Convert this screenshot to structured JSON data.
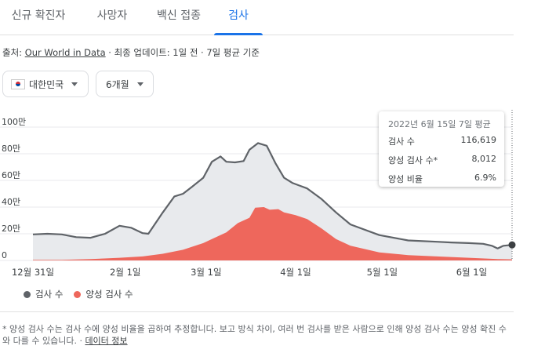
{
  "tabs": [
    {
      "label": "신규 확진자",
      "active": false
    },
    {
      "label": "사망자",
      "active": false
    },
    {
      "label": "백신 접종",
      "active": false
    },
    {
      "label": "검사",
      "active": true
    }
  ],
  "source": {
    "prefix": "출처: ",
    "link": "Our World in Data",
    "suffix": " · 최종 업데이트: 1일 전 · 7일 평균 기준"
  },
  "filters": {
    "country": "대한민국",
    "period": "6개월"
  },
  "tooltip": {
    "title": "2022년 6월 15일 7일 평균",
    "rows": [
      {
        "label": "검사 수",
        "value": "116,619"
      },
      {
        "label": "양성 검사 수*",
        "value": "8,012"
      },
      {
        "label": "양성 비율",
        "value": "6.9%"
      }
    ]
  },
  "legend": [
    {
      "label": "검사 수",
      "color": "#5f6368"
    },
    {
      "label": "양성 검사 수",
      "color": "#ee675c"
    }
  ],
  "footnote": {
    "text": "* 양성 검사 수는 검사 수에 양성 비율을 곱하여 추정합니다. 보고 방식 차이, 여러 번 검사를 받은 사람으로 인해 양성 검사 수는 양성 확진 수와 다를 수 있습니다. · ",
    "link": "데이터 정보"
  },
  "colors": {
    "accent": "#1a73e8",
    "tests_line": "#5f6368",
    "tests_fill": "#e8eaed",
    "positive_fill": "#ee675c"
  },
  "chart_data": {
    "type": "area",
    "x_tick_labels": [
      "12월 31일",
      "2월 1일",
      "3월 1일",
      "4월 1일",
      "5월 1일",
      "6월 1일"
    ],
    "y_tick_labels": [
      "0",
      "20만",
      "40만",
      "60만",
      "80만",
      "100만"
    ],
    "ylim": [
      0,
      1000000
    ],
    "grid": true,
    "series": [
      {
        "name": "검사 수",
        "points": [
          [
            "12-31",
            195000
          ],
          [
            "01-05",
            200000
          ],
          [
            "01-10",
            195000
          ],
          [
            "01-15",
            175000
          ],
          [
            "01-20",
            170000
          ],
          [
            "01-25",
            200000
          ],
          [
            "01-30",
            260000
          ],
          [
            "02-03",
            245000
          ],
          [
            "02-07",
            205000
          ],
          [
            "02-09",
            200000
          ],
          [
            "02-14",
            360000
          ],
          [
            "02-18",
            480000
          ],
          [
            "02-21",
            500000
          ],
          [
            "02-24",
            550000
          ],
          [
            "02-28",
            620000
          ],
          [
            "03-03",
            740000
          ],
          [
            "03-06",
            780000
          ],
          [
            "03-08",
            740000
          ],
          [
            "03-11",
            735000
          ],
          [
            "03-14",
            745000
          ],
          [
            "03-16",
            830000
          ],
          [
            "03-19",
            880000
          ],
          [
            "03-22",
            860000
          ],
          [
            "03-25",
            730000
          ],
          [
            "03-28",
            620000
          ],
          [
            "03-31",
            580000
          ],
          [
            "04-05",
            540000
          ],
          [
            "04-10",
            460000
          ],
          [
            "04-15",
            360000
          ],
          [
            "04-20",
            270000
          ],
          [
            "04-30",
            190000
          ],
          [
            "05-10",
            150000
          ],
          [
            "05-20",
            140000
          ],
          [
            "05-25",
            135000
          ],
          [
            "05-31",
            130000
          ],
          [
            "06-05",
            125000
          ],
          [
            "06-08",
            110000
          ],
          [
            "06-10",
            90000
          ],
          [
            "06-12",
            110000
          ],
          [
            "06-15",
            116619
          ]
        ]
      },
      {
        "name": "양성 검사 수",
        "points": [
          [
            "12-31",
            5000
          ],
          [
            "01-10",
            5000
          ],
          [
            "01-20",
            10000
          ],
          [
            "01-30",
            20000
          ],
          [
            "02-07",
            30000
          ],
          [
            "02-14",
            50000
          ],
          [
            "02-21",
            80000
          ],
          [
            "02-28",
            130000
          ],
          [
            "03-03",
            160000
          ],
          [
            "03-08",
            210000
          ],
          [
            "03-12",
            280000
          ],
          [
            "03-16",
            320000
          ],
          [
            "03-18",
            395000
          ],
          [
            "03-21",
            400000
          ],
          [
            "03-23",
            380000
          ],
          [
            "03-26",
            385000
          ],
          [
            "03-28",
            360000
          ],
          [
            "04-01",
            340000
          ],
          [
            "04-05",
            310000
          ],
          [
            "04-10",
            240000
          ],
          [
            "04-15",
            160000
          ],
          [
            "04-20",
            110000
          ],
          [
            "04-30",
            60000
          ],
          [
            "05-10",
            40000
          ],
          [
            "05-20",
            30000
          ],
          [
            "05-31",
            20000
          ],
          [
            "06-10",
            10000
          ],
          [
            "06-15",
            8012
          ]
        ]
      }
    ]
  }
}
